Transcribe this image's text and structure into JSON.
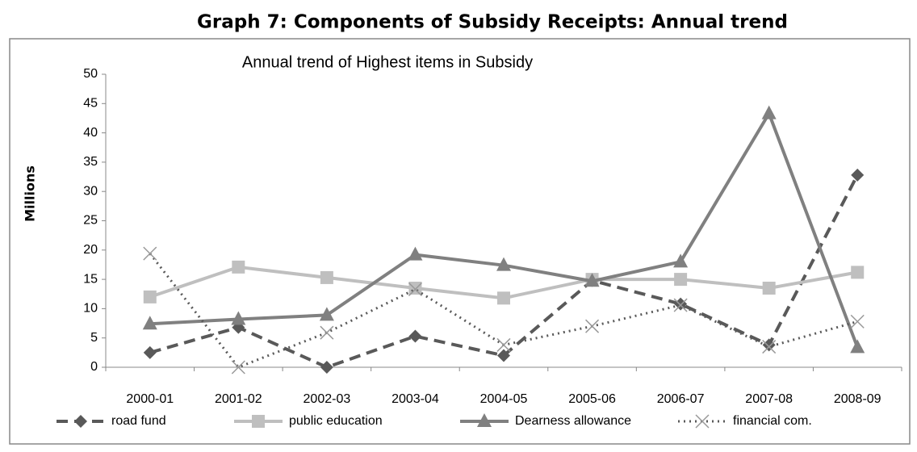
{
  "page_title": "Graph 7: Components of Subsidy Receipts: Annual trend",
  "chart_data": {
    "type": "line",
    "title": "Annual trend of Highest items in Subsidy",
    "y_label": "Millions",
    "categories": [
      "2000-01",
      "2001-02",
      "2002-03",
      "2003-04",
      "2004-05",
      "2005-06",
      "2006-07",
      "2007-08",
      "2008-09"
    ],
    "series": [
      {
        "name": "road fund",
        "color": "#595959",
        "marker": "diamond",
        "line_style": "dash",
        "values": [
          2.5,
          6.8,
          0,
          5.3,
          2,
          14.8,
          10.8,
          3.8,
          32.8
        ]
      },
      {
        "name": "public education",
        "color": "#bfbfbf",
        "marker": "square",
        "line_style": "solid",
        "values": [
          12,
          17.1,
          15.3,
          13.5,
          11.8,
          15,
          15,
          13.5,
          16.2
        ]
      },
      {
        "name": "Dearness allowance",
        "color": "#808080",
        "marker": "triangle",
        "line_style": "solid",
        "values": [
          7.4,
          8.2,
          8.9,
          19.2,
          17.4,
          14.7,
          18,
          43.3,
          3.4
        ]
      },
      {
        "name": "financial com.",
        "color": "#595959",
        "marker": "x",
        "line_style": "dot",
        "values": [
          19.4,
          0,
          5.9,
          13.3,
          3.8,
          7,
          10.6,
          3.5,
          7.8
        ]
      }
    ],
    "ylim": [
      0,
      50
    ],
    "yticks": [
      0,
      5,
      10,
      15,
      20,
      25,
      30,
      35,
      40,
      45,
      50
    ],
    "grid": false,
    "legend": "bottom"
  }
}
